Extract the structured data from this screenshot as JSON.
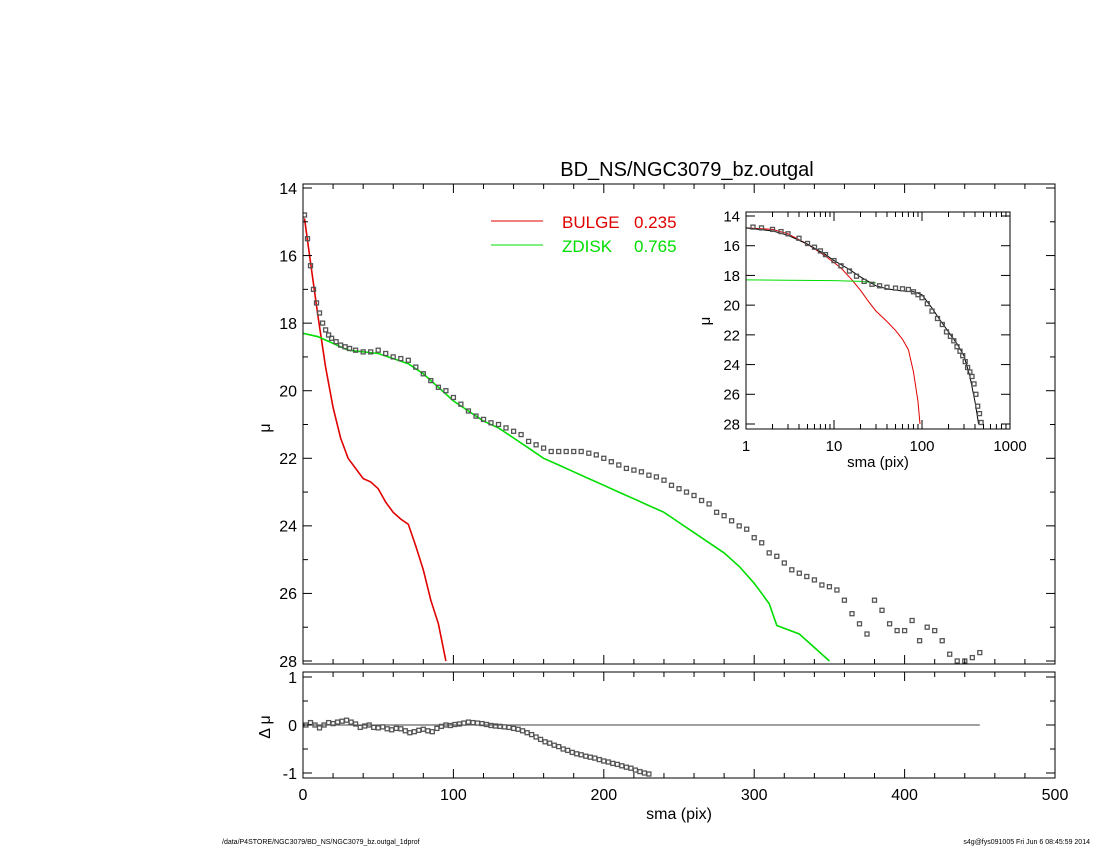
{
  "chart_data": [
    {
      "id": "main_profile",
      "type": "line",
      "title": "BD_NS/NGC3079_bz.outgal",
      "xlabel": "",
      "ylabel": "μ",
      "xlim": [
        0,
        500
      ],
      "ylim": [
        28,
        14
      ],
      "y_inverted": true,
      "x_ticks": [
        0,
        100,
        200,
        300,
        400,
        500
      ],
      "y_ticks": [
        14,
        16,
        18,
        20,
        22,
        24,
        26,
        28
      ],
      "legend_position": "top-center",
      "legend": [
        {
          "label": "BULGE",
          "value": "0.235",
          "color": "#e00000"
        },
        {
          "label": "ZDISK",
          "value": "0.765",
          "color": "#00dd00"
        }
      ],
      "series": [
        {
          "name": "BULGE",
          "kind": "line",
          "color": "#e00000",
          "x": [
            1,
            5,
            10,
            15,
            20,
            25,
            30,
            35,
            40,
            45,
            50,
            55,
            60,
            65,
            70,
            75,
            80,
            85,
            90,
            95
          ],
          "y": [
            14.9,
            16.2,
            17.8,
            19.3,
            20.5,
            21.4,
            22.0,
            22.3,
            22.6,
            22.7,
            22.9,
            23.3,
            23.6,
            23.8,
            23.95,
            24.6,
            25.3,
            26.2,
            26.9,
            28.0
          ]
        },
        {
          "name": "ZDISK",
          "kind": "line",
          "color": "#00dd00",
          "x": [
            0,
            10,
            20,
            30,
            50,
            70,
            80,
            90,
            100,
            110,
            120,
            130,
            140,
            150,
            160,
            170,
            180,
            190,
            200,
            210,
            220,
            230,
            240,
            250,
            260,
            270,
            280,
            290,
            300,
            310,
            315,
            330,
            340,
            350
          ],
          "y": [
            18.3,
            18.4,
            18.6,
            18.8,
            18.9,
            19.2,
            19.5,
            19.9,
            20.3,
            20.6,
            20.9,
            21.1,
            21.4,
            21.7,
            22.0,
            22.2,
            22.4,
            22.6,
            22.8,
            23.0,
            23.2,
            23.4,
            23.6,
            23.9,
            24.2,
            24.5,
            24.8,
            25.2,
            25.7,
            26.3,
            26.95,
            27.2,
            27.6,
            28.0
          ]
        },
        {
          "name": "",
          "kind": "points",
          "color": "#555555",
          "x": [
            1,
            3,
            5,
            7,
            9,
            11,
            13,
            15,
            17,
            19,
            22,
            25,
            28,
            31,
            35,
            40,
            45,
            50,
            55,
            60,
            65,
            70,
            75,
            80,
            85,
            90,
            95,
            100,
            105,
            110,
            115,
            120,
            125,
            130,
            135,
            140,
            145,
            150,
            155,
            160,
            165,
            170,
            175,
            180,
            185,
            190,
            195,
            200,
            205,
            210,
            215,
            220,
            225,
            230,
            235,
            240,
            245,
            250,
            255,
            260,
            265,
            270,
            275,
            280,
            285,
            290,
            295,
            300,
            305,
            310,
            315,
            320,
            325,
            330,
            335,
            340,
            345,
            350,
            355,
            360,
            365,
            370,
            375,
            380,
            385,
            390,
            395,
            400,
            405,
            410,
            415,
            420,
            425,
            430,
            435,
            440,
            445,
            450
          ],
          "y": [
            14.8,
            15.5,
            16.3,
            17.0,
            17.4,
            17.7,
            18.0,
            18.2,
            18.35,
            18.45,
            18.55,
            18.65,
            18.7,
            18.75,
            18.8,
            18.85,
            18.85,
            18.8,
            18.9,
            19.0,
            19.05,
            19.1,
            19.3,
            19.5,
            19.7,
            19.9,
            20.0,
            20.2,
            20.4,
            20.6,
            20.75,
            20.85,
            20.95,
            21.0,
            21.1,
            21.2,
            21.3,
            21.5,
            21.6,
            21.7,
            21.8,
            21.8,
            21.8,
            21.8,
            21.8,
            21.85,
            21.9,
            22.0,
            22.1,
            22.2,
            22.3,
            22.35,
            22.4,
            22.5,
            22.55,
            22.65,
            22.8,
            22.9,
            23.0,
            23.1,
            23.25,
            23.35,
            23.6,
            23.7,
            23.85,
            24.0,
            24.1,
            24.35,
            24.5,
            24.8,
            24.9,
            25.1,
            25.3,
            25.4,
            25.5,
            25.6,
            25.75,
            25.8,
            25.9,
            26.2,
            26.6,
            26.9,
            27.2,
            26.2,
            26.5,
            26.9,
            27.1,
            27.1,
            26.8,
            27.4,
            27.0,
            27.1,
            27.4,
            27.8,
            28.0,
            28.0,
            27.9,
            27.75
          ]
        }
      ]
    },
    {
      "id": "inset_profile",
      "type": "line",
      "title": "",
      "xlabel": "sma (pix)",
      "ylabel": "μ",
      "x_scale": "log",
      "xlim": [
        1,
        1000
      ],
      "ylim": [
        28,
        14
      ],
      "y_inverted": true,
      "x_ticks": [
        1,
        10,
        100,
        1000
      ],
      "y_ticks": [
        14,
        16,
        18,
        20,
        22,
        24,
        26,
        28
      ],
      "series": [
        {
          "name": "BULGE",
          "kind": "line",
          "color": "#e00000",
          "x": [
            1,
            2,
            3,
            5,
            8,
            12,
            16,
            20,
            25,
            30,
            40,
            50,
            60,
            70,
            80,
            90,
            95
          ],
          "y": [
            14.8,
            14.9,
            15.2,
            15.9,
            16.7,
            17.5,
            18.3,
            19.0,
            19.8,
            20.4,
            21.1,
            21.7,
            22.3,
            23.0,
            24.5,
            26.5,
            28.0
          ]
        },
        {
          "name": "ZDISK",
          "kind": "line",
          "color": "#00dd00",
          "x": [
            1,
            3,
            10,
            20,
            30
          ],
          "y": [
            18.3,
            18.32,
            18.35,
            18.4,
            18.5
          ]
        },
        {
          "name": "",
          "kind": "line",
          "color": "#000000",
          "x": [
            1,
            2,
            3,
            5,
            8,
            10,
            15,
            20,
            30,
            40,
            60,
            80,
            100,
            130,
            160,
            200,
            250,
            300,
            350,
            400,
            440
          ],
          "y": [
            14.8,
            15.0,
            15.3,
            15.9,
            16.6,
            17.0,
            17.6,
            18.1,
            18.7,
            18.9,
            19.05,
            19.1,
            19.3,
            20.2,
            21.0,
            21.8,
            22.6,
            23.4,
            24.8,
            26.5,
            28.0
          ]
        },
        {
          "name": "",
          "kind": "points",
          "color": "#555555",
          "x": [
            1.2,
            1.5,
            2,
            2.5,
            3,
            4,
            5,
            6,
            7,
            8,
            10,
            12,
            15,
            18,
            22,
            27,
            33,
            40,
            50,
            60,
            70,
            80,
            90,
            100,
            115,
            130,
            150,
            170,
            190,
            210,
            230,
            250,
            270,
            290,
            310,
            330,
            350,
            370,
            390,
            410,
            430,
            450,
            470
          ],
          "y": [
            14.75,
            14.8,
            14.9,
            15.05,
            15.2,
            15.5,
            15.85,
            16.1,
            16.35,
            16.6,
            17.0,
            17.35,
            17.7,
            18.05,
            18.4,
            18.6,
            18.7,
            18.8,
            18.85,
            18.9,
            18.95,
            19.1,
            19.3,
            19.5,
            19.9,
            20.4,
            20.9,
            21.3,
            21.8,
            22.1,
            22.4,
            22.8,
            23.1,
            23.4,
            23.8,
            24.2,
            24.5,
            24.8,
            25.3,
            26.0,
            26.8,
            27.3,
            27.9
          ]
        }
      ]
    },
    {
      "id": "residuals",
      "type": "scatter",
      "title": "",
      "xlabel": "sma (pix)",
      "ylabel": "Δ μ",
      "xlim": [
        0,
        500
      ],
      "ylim": [
        -1.05,
        1.05
      ],
      "x_ticks": [
        0,
        100,
        200,
        300,
        400,
        500
      ],
      "y_ticks": [
        -1,
        0,
        1
      ],
      "reference_line": {
        "y": 0,
        "x_from": 0,
        "x_to": 450
      },
      "series": [
        {
          "name": "",
          "kind": "points",
          "color": "#555555",
          "x": [
            2,
            5,
            8,
            11,
            14,
            17,
            20,
            23,
            26,
            29,
            32,
            35,
            38,
            41,
            44,
            47,
            50,
            53,
            56,
            59,
            62,
            65,
            68,
            71,
            74,
            77,
            80,
            83,
            86,
            89,
            92,
            95,
            98,
            101,
            104,
            107,
            110,
            113,
            116,
            119,
            122,
            125,
            128,
            131,
            134,
            137,
            140,
            143,
            146,
            149,
            152,
            155,
            158,
            161,
            164,
            167,
            170,
            173,
            176,
            179,
            182,
            185,
            188,
            191,
            194,
            197,
            200,
            203,
            206,
            209,
            212,
            215,
            218,
            221,
            224,
            227,
            230
          ],
          "y": [
            0.0,
            0.05,
            0.0,
            -0.06,
            0.0,
            0.05,
            0.03,
            0.06,
            0.08,
            0.1,
            0.06,
            0.02,
            -0.05,
            -0.02,
            0.0,
            -0.05,
            -0.06,
            -0.04,
            -0.08,
            -0.1,
            -0.07,
            -0.08,
            -0.12,
            -0.16,
            -0.14,
            -0.11,
            -0.09,
            -0.12,
            -0.14,
            -0.07,
            -0.03,
            0.0,
            -0.01,
            0.01,
            0.02,
            0.04,
            0.06,
            0.05,
            0.04,
            0.03,
            0.01,
            -0.01,
            -0.02,
            -0.03,
            -0.04,
            -0.05,
            -0.07,
            -0.09,
            -0.12,
            -0.16,
            -0.2,
            -0.25,
            -0.3,
            -0.35,
            -0.38,
            -0.42,
            -0.45,
            -0.5,
            -0.53,
            -0.57,
            -0.6,
            -0.62,
            -0.65,
            -0.67,
            -0.69,
            -0.72,
            -0.75,
            -0.77,
            -0.8,
            -0.82,
            -0.85,
            -0.88,
            -0.9,
            -0.94,
            -0.97,
            -1.0,
            -1.02
          ]
        }
      ]
    }
  ],
  "footer": {
    "left": "/data/P4STORE/NGC3079/BD_NS/NGC3079_bz.outgal_1dprof",
    "right": "s4g@fys091005  Fri Jun  6 08:45:59 2014"
  }
}
